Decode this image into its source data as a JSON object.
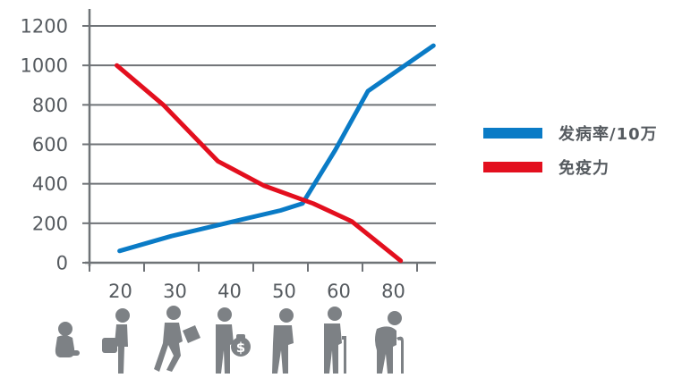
{
  "chart_data": {
    "type": "line",
    "x": [
      "20",
      "30",
      "40",
      "50",
      "60",
      "80"
    ],
    "ylim": [
      0,
      1200
    ],
    "yticks": [
      0,
      200,
      400,
      600,
      800,
      1000,
      1200
    ],
    "grid": true,
    "legend_position": "right",
    "series": [
      {
        "name": "发病率/10万",
        "color": "#0a7bc6",
        "points": [
          [
            0.55,
            60
          ],
          [
            1.5,
            135
          ],
          [
            2.5,
            200
          ],
          [
            3.5,
            265
          ],
          [
            3.9,
            300
          ],
          [
            4.5,
            570
          ],
          [
            5.1,
            870
          ],
          [
            6.3,
            1100
          ]
        ]
      },
      {
        "name": "免疫力",
        "color": "#e30f1e",
        "points": [
          [
            0.5,
            1000
          ],
          [
            1.35,
            800
          ],
          [
            2.35,
            515
          ],
          [
            3.2,
            390
          ],
          [
            4.1,
            300
          ],
          [
            4.8,
            210
          ],
          [
            5.7,
            10
          ]
        ]
      }
    ]
  },
  "figures": [
    {
      "icon": "baby-icon"
    },
    {
      "icon": "child-with-bag-icon"
    },
    {
      "icon": "student-running-icon"
    },
    {
      "icon": "adult-with-money-bag-icon"
    },
    {
      "icon": "middle-aged-person-icon"
    },
    {
      "icon": "elderly-with-cane-icon"
    },
    {
      "icon": "very-old-person-with-cane-icon"
    }
  ]
}
